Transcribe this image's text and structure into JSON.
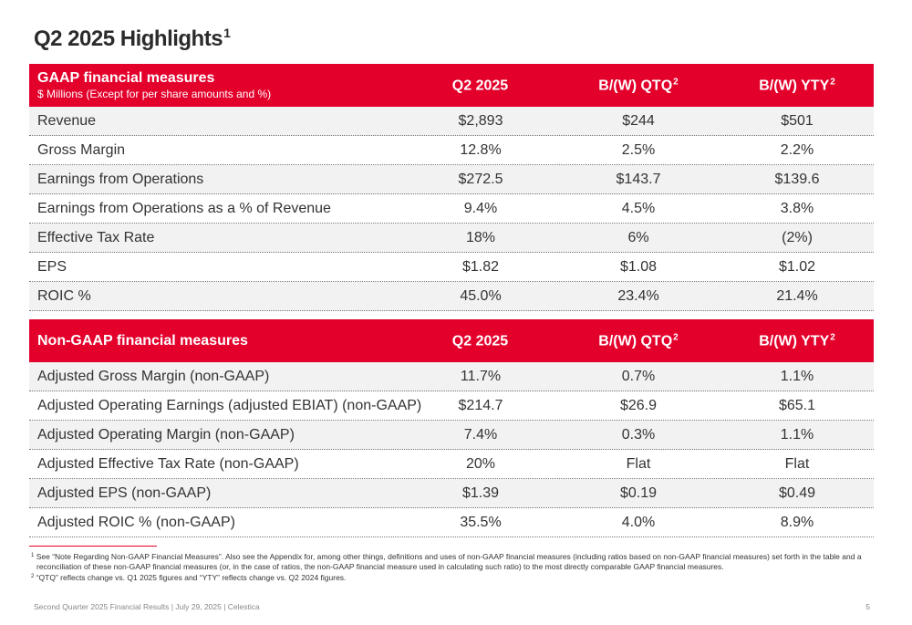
{
  "title": "Q2 2025 Highlights",
  "title_sup": "1",
  "colors": {
    "accent": "#e3002b",
    "row_shade": "#f2f2f2"
  },
  "gaap": {
    "heading": "GAAP financial measures",
    "subheading": "$ Millions (Except for per share amounts and %)",
    "cols": [
      {
        "label": "Q2 2025",
        "sup": ""
      },
      {
        "label": "B/(W) QTQ",
        "sup": "2"
      },
      {
        "label": "B/(W) YTY",
        "sup": "2"
      }
    ],
    "rows": [
      {
        "label": "Revenue",
        "values": [
          "$2,893",
          "$244",
          "$501"
        ]
      },
      {
        "label": "Gross Margin",
        "values": [
          "12.8%",
          "2.5%",
          "2.2%"
        ]
      },
      {
        "label": "Earnings from Operations",
        "values": [
          "$272.5",
          "$143.7",
          "$139.6"
        ]
      },
      {
        "label": "Earnings from Operations as a % of Revenue",
        "values": [
          "9.4%",
          "4.5%",
          "3.8%"
        ]
      },
      {
        "label": "Effective Tax Rate",
        "values": [
          "18%",
          "6%",
          "(2%)"
        ]
      },
      {
        "label": "EPS",
        "values": [
          "$1.82",
          "$1.08",
          "$1.02"
        ]
      },
      {
        "label": "ROIC %",
        "values": [
          "45.0%",
          "23.4%",
          "21.4%"
        ]
      }
    ]
  },
  "nongaap": {
    "heading": "Non-GAAP financial measures",
    "cols": [
      {
        "label": "Q2 2025",
        "sup": ""
      },
      {
        "label": "B/(W) QTQ",
        "sup": "2"
      },
      {
        "label": "B/(W) YTY",
        "sup": "2"
      }
    ],
    "rows": [
      {
        "label": "Adjusted Gross Margin (non-GAAP)",
        "values": [
          "11.7%",
          "0.7%",
          "1.1%"
        ]
      },
      {
        "label": "Adjusted Operating Earnings (adjusted EBIAT) (non-GAAP)",
        "values": [
          "$214.7",
          "$26.9",
          "$65.1"
        ]
      },
      {
        "label": "Adjusted Operating Margin (non-GAAP)",
        "values": [
          "7.4%",
          "0.3%",
          "1.1%"
        ]
      },
      {
        "label": "Adjusted Effective Tax Rate (non-GAAP)",
        "values": [
          "20%",
          "Flat",
          "Flat"
        ]
      },
      {
        "label": "Adjusted EPS (non-GAAP)",
        "values": [
          "$1.39",
          "$0.19",
          "$0.49"
        ]
      },
      {
        "label": "Adjusted ROIC % (non-GAAP)",
        "values": [
          "35.5%",
          "4.0%",
          "8.9%"
        ]
      }
    ]
  },
  "footnotes": [
    {
      "num": "1",
      "text": "See “Note Regarding Non-GAAP Financial Measures”. Also see the Appendix for, among other things, definitions and uses of non-GAAP financial measures (including ratios based on non-GAAP financial measures) set forth in the table and a reconciliation of these non-GAAP financial measures (or, in the case of ratios, the non-GAAP financial measure used in calculating such ratio) to the most directly comparable GAAP financial measures."
    },
    {
      "num": "2",
      "text": "“QTQ” reflects change vs. Q1 2025 figures and “YTY” reflects change vs. Q2 2024 figures."
    }
  ],
  "footer": "Second Quarter 2025 Financial Results | July 29, 2025 | Celestica",
  "page_number": "5"
}
